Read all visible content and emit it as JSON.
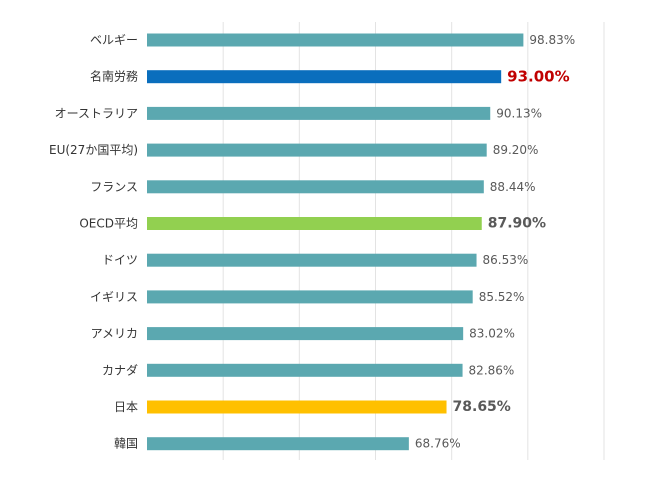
{
  "chart_data": {
    "type": "bar",
    "orientation": "horizontal",
    "categories": [
      "ベルギー",
      "名南労務",
      "オーストラリア",
      "EU(27か国平均)",
      "フランス",
      "OECD平均",
      "ドイツ",
      "イギリス",
      "アメリカ",
      "カナダ",
      "日本",
      "韓国"
    ],
    "values": [
      98.83,
      93.0,
      90.13,
      89.2,
      88.44,
      87.9,
      86.53,
      85.52,
      83.02,
      82.86,
      78.65,
      68.76
    ],
    "value_labels": [
      "98.83%",
      "93.00%",
      "90.13%",
      "89.20%",
      "88.44%",
      "87.90%",
      "86.53%",
      "85.52%",
      "83.02%",
      "82.86%",
      "78.65%",
      "68.76%"
    ],
    "title": "",
    "xlabel": "",
    "ylabel": "",
    "xlim": [
      0,
      120
    ],
    "grid": true,
    "legend": "none",
    "colors": {
      "default": "#5ba8b0",
      "名南労務": "#0a6ebd",
      "OECD平均": "#92d050",
      "日本": "#ffc000",
      "accent_text": "#c00000"
    },
    "emphasis": {
      "名南労務": "accent",
      "OECD平均": "bold",
      "日本": "bold"
    }
  }
}
